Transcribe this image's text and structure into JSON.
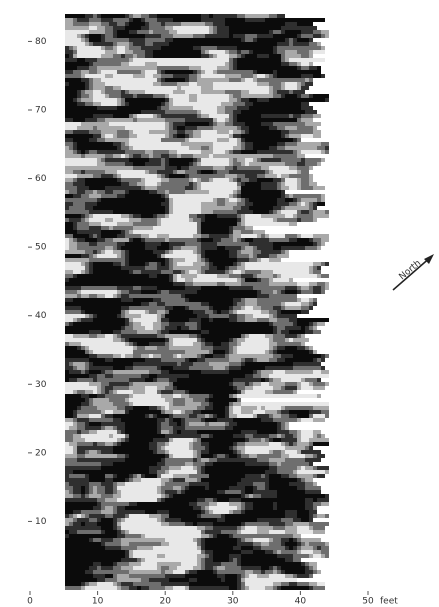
{
  "map": {
    "xlim": [
      0,
      50
    ],
    "ylim": [
      0,
      84
    ],
    "xticks": [
      0,
      10,
      20,
      30,
      40,
      50
    ],
    "yticks": [
      10,
      20,
      30,
      40,
      50,
      60,
      70,
      80
    ],
    "x_unit": "feet",
    "north_label": "North"
  }
}
